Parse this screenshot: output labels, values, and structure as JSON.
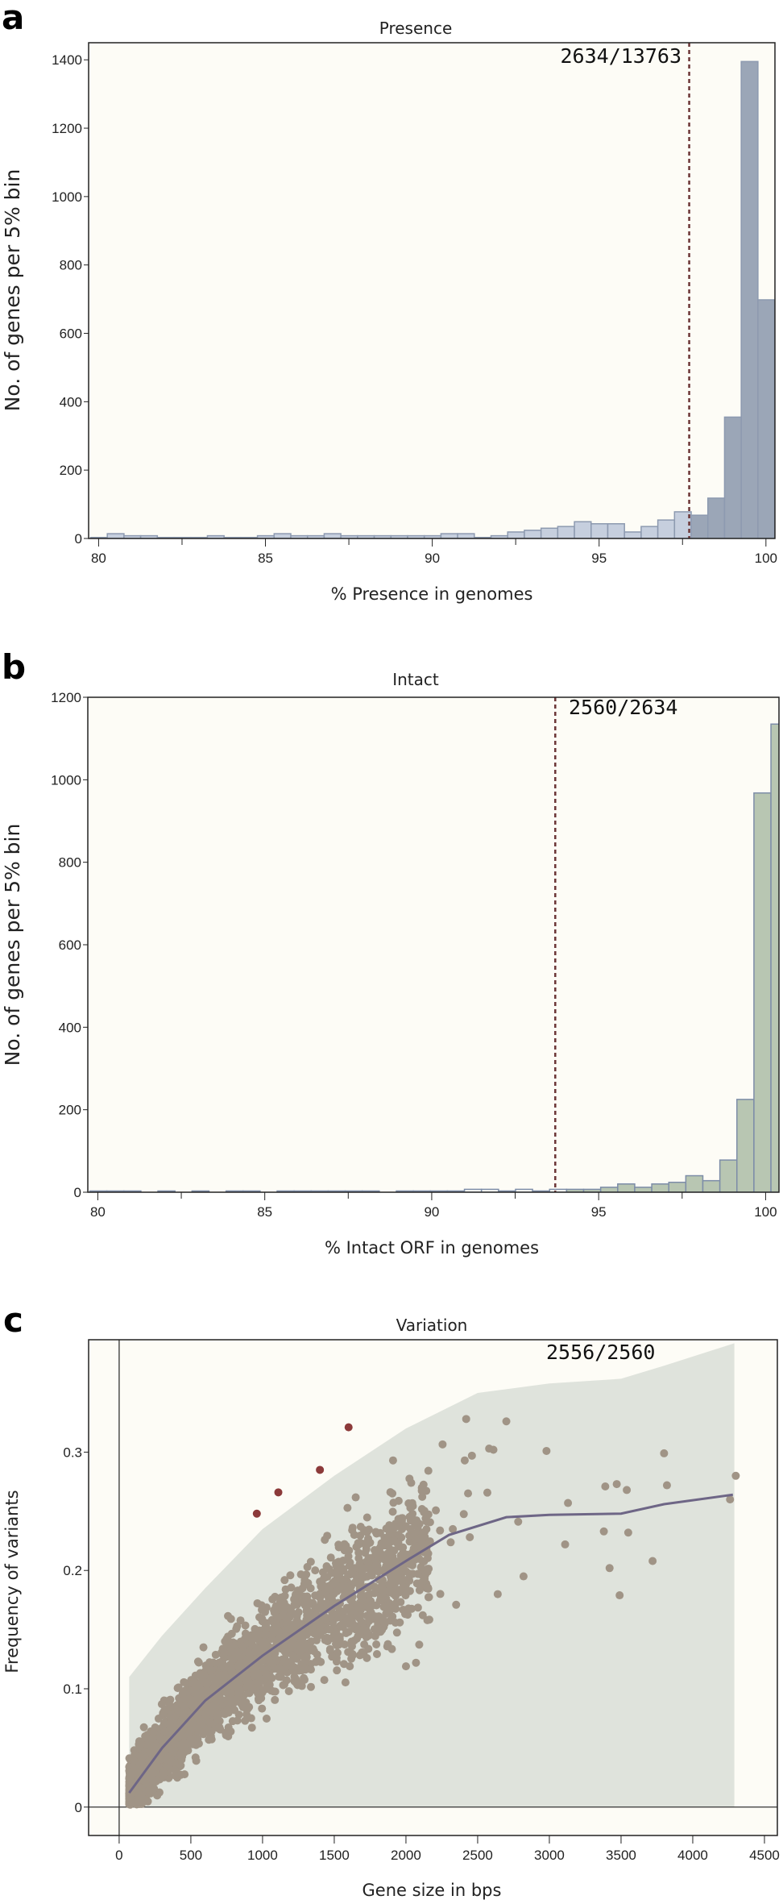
{
  "colors": {
    "plot_bg": "#fdfcf6",
    "presence_light": "#c6cfde",
    "presence_dark": "#9ba6b7",
    "presence_stroke": "#8d9ab0",
    "intact_light": "#fbfbf6",
    "intact_dark": "#b8c6b2",
    "intact_stroke": "#7d8da8",
    "threshold_line": "#6b3535",
    "band": "#dfe3dc",
    "points": "#a09486",
    "outliers": "#8c3a3a",
    "smooth_line": "#6e6686"
  },
  "chart_data": [
    {
      "type": "bar",
      "panel_label": "a",
      "title": "Presence",
      "xlabel": "% Presence in genomes",
      "ylabel": "No. of genes per 5% bin",
      "xlim": [
        79.7,
        100.27
      ],
      "ylim": [
        0,
        1450
      ],
      "xticks": [
        80,
        85,
        90,
        95,
        100
      ],
      "xtick_labels": [
        "80",
        "85",
        "90",
        "95",
        "100"
      ],
      "yticks": [
        0,
        200,
        400,
        600,
        800,
        1000,
        1200,
        1400
      ],
      "ytick_labels": [
        "0",
        "200",
        "400",
        "600",
        "800",
        "1000",
        "1200",
        "1400"
      ],
      "bin_start": 79.76,
      "bin_width": 0.5,
      "values": [
        3,
        14,
        8,
        8,
        3,
        3,
        3,
        8,
        3,
        3,
        8,
        14,
        8,
        8,
        14,
        8,
        8,
        8,
        8,
        8,
        8,
        14,
        14,
        3,
        8,
        19,
        24,
        30,
        35,
        49,
        43,
        43,
        19,
        35,
        54,
        78,
        68,
        118,
        355,
        1395,
        698
      ],
      "threshold": 97.7,
      "annotation": "2634/13763"
    },
    {
      "type": "bar",
      "panel_label": "b",
      "title": "Intact",
      "xlabel": "% Intact ORF in genomes",
      "ylabel": "No. of genes per 5% bin",
      "xlim": [
        79.7,
        100.4
      ],
      "ylim": [
        0,
        1200
      ],
      "xticks": [
        80,
        85,
        90,
        95,
        100
      ],
      "xtick_labels": [
        "80",
        "85",
        "90",
        "95",
        "100"
      ],
      "yticks": [
        0,
        200,
        400,
        600,
        800,
        1000,
        1200
      ],
      "ytick_labels": [
        "0",
        "200",
        "400",
        "600",
        "800",
        "1000",
        "1200"
      ],
      "bin_start": 79.76,
      "bin_width": 0.51,
      "values": [
        3,
        3,
        3,
        0,
        3,
        0,
        3,
        0,
        3,
        3,
        0,
        3,
        3,
        3,
        3,
        3,
        3,
        0,
        3,
        3,
        3,
        3,
        7,
        7,
        3,
        7,
        3,
        7,
        7,
        7,
        12,
        20,
        12,
        20,
        24,
        40,
        28,
        78,
        225,
        968,
        1135
      ],
      "threshold": 93.7,
      "annotation": "2560/2634"
    },
    {
      "type": "scatter",
      "panel_label": "c",
      "title": "Variation",
      "xlabel": "Gene size in bps",
      "ylabel": "Frequency of variants",
      "xlim": [
        -213,
        4590
      ],
      "ylim": [
        -0.024,
        0.395
      ],
      "xticks": [
        0,
        500,
        1000,
        1500,
        2000,
        2500,
        3000,
        3500,
        4000,
        4500
      ],
      "xtick_labels": [
        "0",
        "500",
        "1000",
        "1500",
        "2000",
        "2500",
        "3000",
        "3500",
        "4000",
        "4500"
      ],
      "yticks": [
        0,
        0.1,
        0.2,
        0.3
      ],
      "ytick_labels": [
        "0",
        "0.1",
        "0.2",
        "0.3"
      ],
      "annotation": "2556/2560",
      "n_points": 2556,
      "smooth": [
        [
          70,
          0.012
        ],
        [
          300,
          0.05
        ],
        [
          600,
          0.09
        ],
        [
          1000,
          0.128
        ],
        [
          1500,
          0.17
        ],
        [
          2000,
          0.208
        ],
        [
          2300,
          0.23
        ],
        [
          2700,
          0.245
        ],
        [
          3000,
          0.247
        ],
        [
          3500,
          0.248
        ],
        [
          3800,
          0.256
        ],
        [
          4280,
          0.264
        ]
      ],
      "band_upper": [
        [
          70,
          0.11
        ],
        [
          300,
          0.145
        ],
        [
          600,
          0.185
        ],
        [
          1000,
          0.235
        ],
        [
          1500,
          0.28
        ],
        [
          2000,
          0.32
        ],
        [
          2500,
          0.35
        ],
        [
          3000,
          0.358
        ],
        [
          3500,
          0.362
        ],
        [
          3800,
          0.373
        ],
        [
          4290,
          0.392
        ]
      ],
      "band_lower": 0,
      "outliers": [
        [
          960,
          0.248
        ],
        [
          1110,
          0.266
        ],
        [
          1400,
          0.285
        ],
        [
          1600,
          0.321
        ]
      ],
      "sparse_points": [
        [
          2420,
          0.328
        ],
        [
          2700,
          0.326
        ],
        [
          2580,
          0.303
        ],
        [
          2610,
          0.302
        ],
        [
          2980,
          0.301
        ],
        [
          3800,
          0.299
        ],
        [
          1910,
          0.293
        ],
        [
          2410,
          0.293
        ],
        [
          2460,
          0.297
        ],
        [
          3820,
          0.272
        ],
        [
          3390,
          0.271
        ],
        [
          3470,
          0.273
        ],
        [
          3540,
          0.268
        ],
        [
          3130,
          0.257
        ],
        [
          4300,
          0.28
        ],
        [
          4260,
          0.26
        ],
        [
          3110,
          0.222
        ],
        [
          3380,
          0.233
        ],
        [
          3550,
          0.232
        ],
        [
          3720,
          0.208
        ],
        [
          3420,
          0.202
        ],
        [
          3490,
          0.179
        ],
        [
          2820,
          0.195
        ],
        [
          2640,
          0.18
        ],
        [
          2350,
          0.171
        ],
        [
          2000,
          0.119
        ],
        [
          2070,
          0.122
        ]
      ]
    }
  ]
}
